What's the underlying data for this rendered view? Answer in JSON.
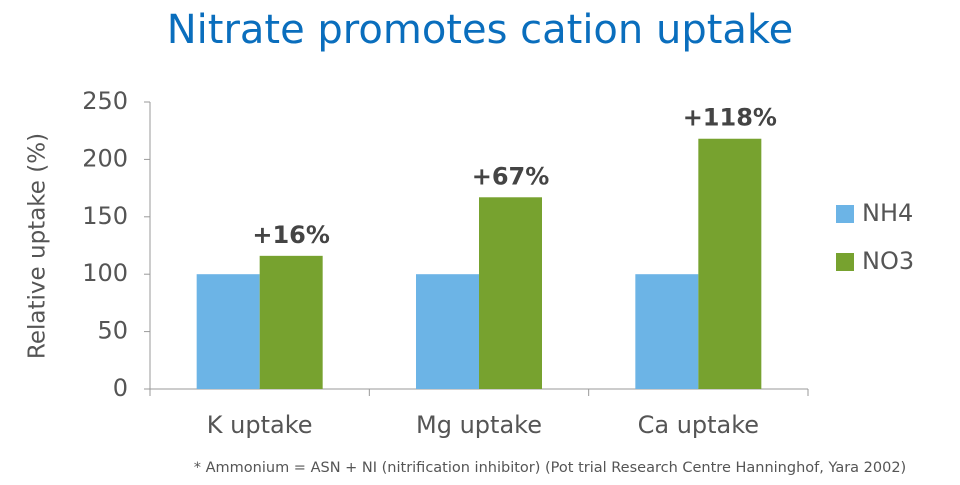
{
  "chart_data": {
    "type": "bar",
    "title": "Nitrate promotes cation uptake",
    "y_label": "Relative uptake (%)",
    "categories": [
      "K uptake",
      "Mg uptake",
      "Ca uptake"
    ],
    "series": [
      {
        "name": "NH4",
        "color": "#6cb4e6",
        "values": [
          100,
          100,
          100
        ]
      },
      {
        "name": "NO3",
        "color": "#77a22f",
        "values": [
          116,
          167,
          218
        ]
      }
    ],
    "annotations": [
      "+16%",
      "+67%",
      "+118%"
    ],
    "ylim": [
      0,
      250
    ],
    "yticks": [
      0,
      50,
      100,
      150,
      200,
      250
    ],
    "grid": false,
    "legend": "right",
    "footnote": "* Ammonium = ASN + NI (nitrification inhibitor)  (Pot trial Research Centre Hanninghof, Yara  2002)"
  }
}
